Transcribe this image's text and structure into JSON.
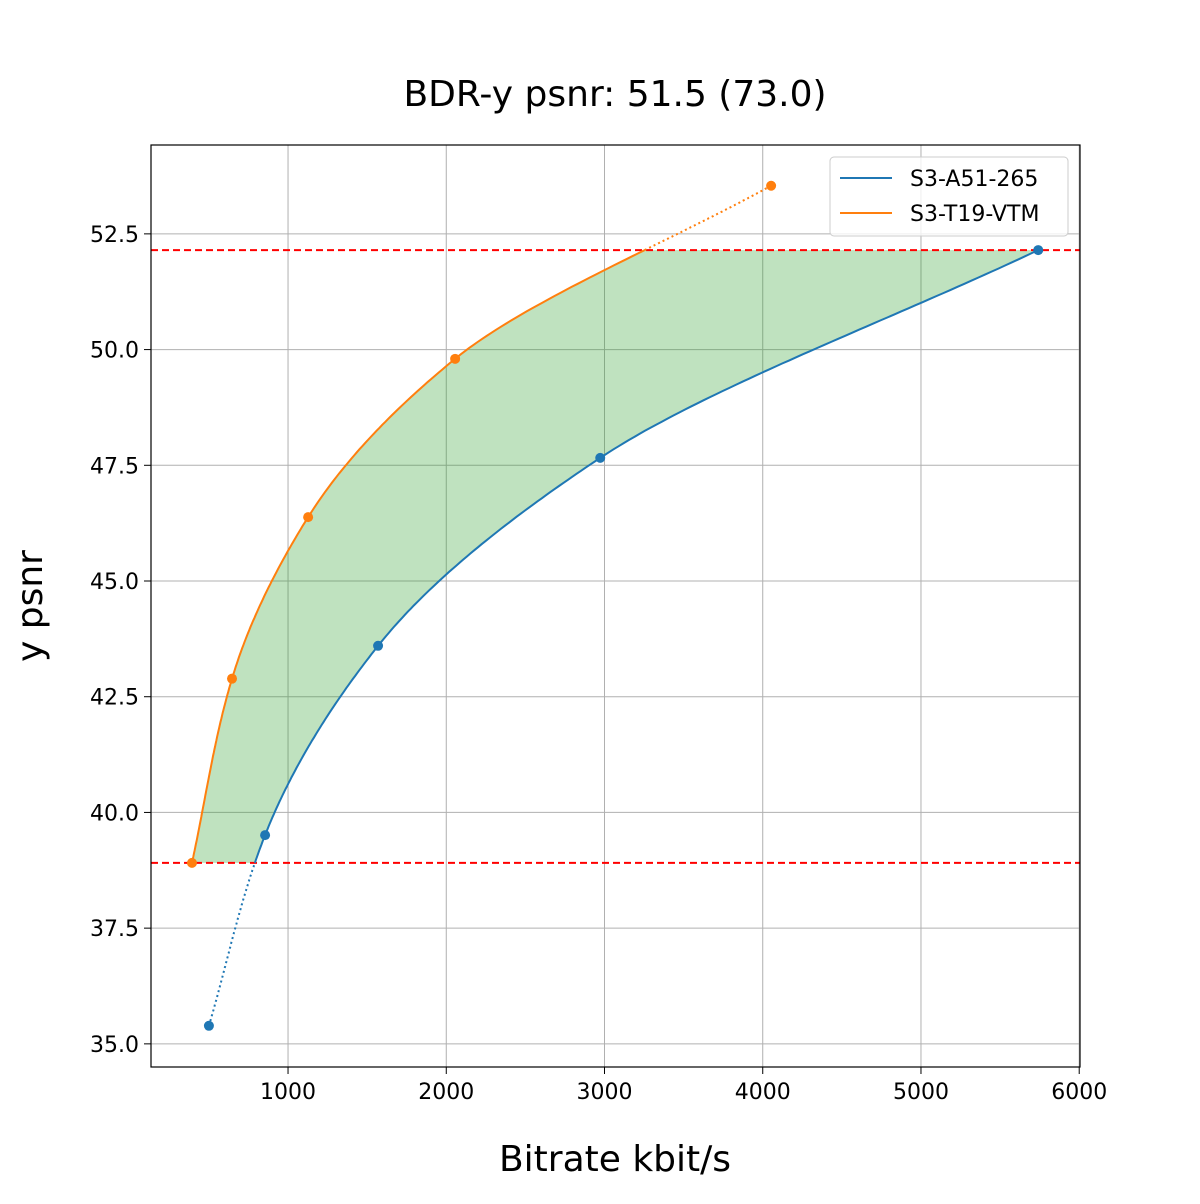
{
  "chart_data": {
    "type": "line",
    "title": "BDR-y psnr: 51.5 (73.0)",
    "xlabel": "Bitrate kbit/s",
    "ylabel": "y psnr",
    "xlim": [
      134,
      6005
    ],
    "ylim": [
      34.5,
      54.42
    ],
    "xticks": [
      1000,
      2000,
      3000,
      4000,
      5000,
      6000
    ],
    "xtick_labels": [
      "1000",
      "2000",
      "3000",
      "4000",
      "5000",
      "6000"
    ],
    "yticks": [
      35.0,
      37.5,
      40.0,
      42.5,
      45.0,
      47.5,
      50.0,
      52.5
    ],
    "ytick_labels": [
      "35.0",
      "37.5",
      "40.0",
      "42.5",
      "45.0",
      "47.5",
      "50.0",
      "52.5"
    ],
    "grid": true,
    "legend_position": "top-right",
    "series": [
      {
        "name": "S3-A51-265",
        "color": "#1f77b4",
        "x": [
          500,
          855,
          1569,
          2973,
          5741
        ],
        "y": [
          35.39,
          39.51,
          43.6,
          47.66,
          52.15
        ]
      },
      {
        "name": "S3-T19-VTM",
        "color": "#ff7f0e",
        "x": [
          393,
          646,
          1127,
          2056,
          4053
        ],
        "y": [
          38.91,
          42.89,
          46.38,
          49.8,
          53.54
        ]
      }
    ],
    "reference_lines": [
      {
        "orientation": "horizontal",
        "y": 52.15,
        "color": "#ff0000",
        "style": "dashed"
      },
      {
        "orientation": "horizontal",
        "y": 38.91,
        "color": "#ff0000",
        "style": "dashed"
      }
    ],
    "fill_between": {
      "color": "#2ca02c",
      "opacity": 0.3,
      "y_range": [
        38.91,
        52.15
      ]
    }
  }
}
